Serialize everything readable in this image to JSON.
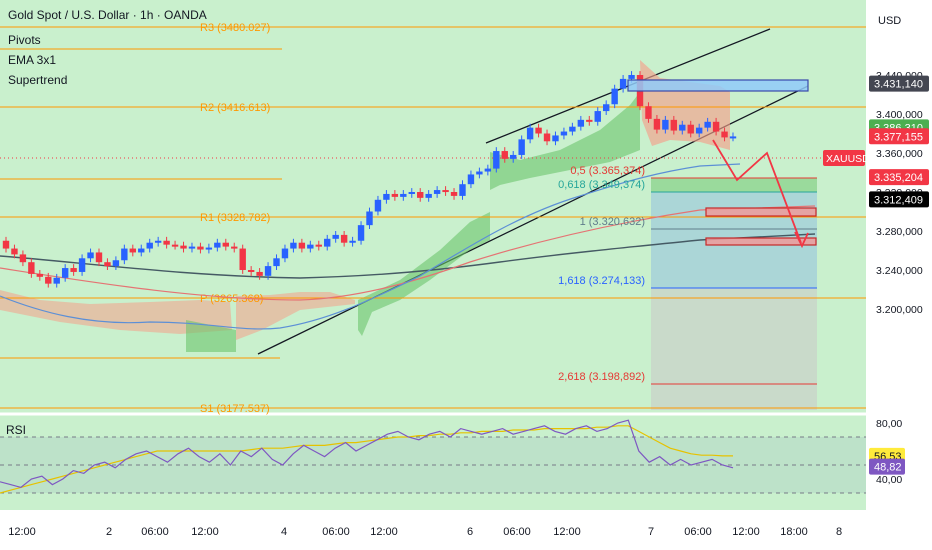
{
  "header": {
    "title": "Gold Spot / U.S. Dollar · 1h · OANDA",
    "indicators": [
      "Pivots",
      "EMA 3x1",
      "Supertrend"
    ],
    "currency": "USD"
  },
  "pivots": [
    {
      "label": "R3 (3480.027)",
      "value": 3480.027
    },
    {
      "label": "R2 (3416.613)",
      "value": 3416.613
    },
    {
      "label": "R1 (3328.782)",
      "value": 3328.782
    },
    {
      "label": "P (3265.368)",
      "value": 3265.368
    },
    {
      "label": "S1 (3177.537)",
      "value": 3177.537
    }
  ],
  "fib_levels": [
    {
      "label": "0,5 (3.365,374)",
      "value": 3365.374,
      "color": "#e53935"
    },
    {
      "label": "0,618 (3.349,374)",
      "value": 3349.374,
      "color": "#26a69a"
    },
    {
      "label": "1 (3.320,632)",
      "value": 3320.632,
      "color": "#607d8b"
    },
    {
      "label": "1,618 (3.274,133)",
      "value": 3274.133,
      "color": "#2962ff"
    },
    {
      "label": "2,618 (3.198,892)",
      "value": 3198.892,
      "color": "#e53935"
    }
  ],
  "price_axis": {
    "ticks": [
      "3.440,000",
      "3.400,000",
      "3.360,000",
      "3.320,000",
      "3.280,000",
      "3.240,000",
      "3.200,000"
    ],
    "tick_values": [
      3440,
      3400,
      3360,
      3320,
      3280,
      3240,
      3200
    ],
    "tags": [
      {
        "text": "3.431,140",
        "value": 3431.14,
        "bg": "#434651",
        "fg": "#ffffff"
      },
      {
        "text": "3.386,310",
        "value": 3386.31,
        "bg": "#4caf50",
        "fg": "#ffffff"
      },
      {
        "text": "3.377,155",
        "value": 3377.155,
        "bg": "#f23645",
        "fg": "#ffffff"
      },
      {
        "text": "3.335,204",
        "value": 3335.204,
        "bg": "#f23645",
        "fg": "#ffffff"
      },
      {
        "text": "3.312,409",
        "value": 3312.409,
        "bg": "#000000",
        "fg": "#ffffff"
      }
    ],
    "symbol_tag": "XAUUSD"
  },
  "time_axis": {
    "labels": [
      "12:00",
      "2",
      "06:00",
      "12:00",
      "4",
      "06:00",
      "12:00",
      "6",
      "06:00",
      "12:00",
      "7",
      "06:00",
      "12:00",
      "18:00",
      "8"
    ]
  },
  "rsi": {
    "label": "RSI",
    "ticks": [
      "80,00",
      "40,00"
    ],
    "tick_values": [
      80,
      40
    ],
    "value_tags": [
      {
        "text": "56,53",
        "value": 56.53,
        "bg": "#ffeb3b",
        "fg": "#131722"
      },
      {
        "text": "48,82",
        "value": 48.82,
        "bg": "#7e57c2",
        "fg": "#ffffff"
      }
    ],
    "bands": [
      70,
      30
    ]
  },
  "colors": {
    "bull": "#2962ff",
    "bear": "#f23645",
    "pivot": "#ff9800",
    "background": "#c9f0cd",
    "channel": "#131722"
  },
  "chart_data": {
    "type": "candlestick",
    "title": "Gold Spot / U.S. Dollar · 1h · OANDA",
    "ylim": [
      3180,
      3500
    ],
    "price_close_series": [
      3262,
      3256,
      3248,
      3236,
      3233,
      3226,
      3232,
      3242,
      3238,
      3252,
      3258,
      3248,
      3244,
      3250,
      3262,
      3258,
      3262,
      3268,
      3270,
      3266,
      3265,
      3262,
      3264,
      3261,
      3263,
      3268,
      3264,
      3262,
      3240,
      3238,
      3234,
      3244,
      3252,
      3262,
      3268,
      3262,
      3266,
      3264,
      3272,
      3276,
      3268,
      3270,
      3286,
      3300,
      3312,
      3318,
      3315,
      3318,
      3320,
      3314,
      3318,
      3322,
      3320,
      3316,
      3328,
      3338,
      3341,
      3344,
      3362,
      3354,
      3358,
      3374,
      3386,
      3380,
      3372,
      3378,
      3382,
      3387,
      3394,
      3392,
      3403,
      3410,
      3426,
      3436,
      3440,
      3408,
      3395,
      3384,
      3394,
      3383,
      3389,
      3380,
      3386,
      3392,
      3382,
      3376,
      3377
    ]
  }
}
